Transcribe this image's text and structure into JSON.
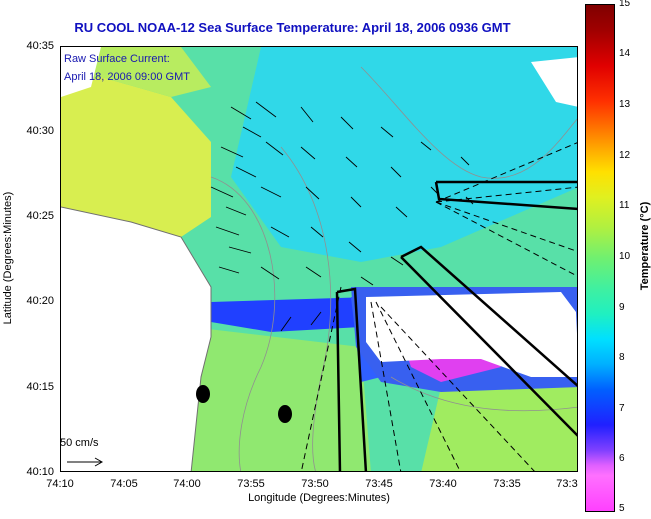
{
  "title": "RU COOL  NOAA-12  Sea Surface Temperature:  April 18, 2006 0936 GMT",
  "legend": {
    "line1": "Raw Surface Current:",
    "line2": "April 18, 2006 09:00 GMT"
  },
  "scale": {
    "label": "50 cm/s"
  },
  "axes": {
    "xlabel": "Longitude (Degrees:Minutes)",
    "ylabel": "Latitude (Degrees:Minutes)",
    "xticks": [
      "74:10",
      "74:05",
      "74:00",
      "73:55",
      "73:50",
      "73:45",
      "73:40",
      "73:35",
      "73:3"
    ],
    "yticks": [
      "40:35",
      "40:30",
      "40:25",
      "40:20",
      "40:15",
      "40:10"
    ]
  },
  "colorbar": {
    "label": "Temperature (°C)",
    "ticks": [
      "15",
      "14",
      "13",
      "12",
      "11",
      "10",
      "9",
      "8",
      "7",
      "6",
      "5"
    ],
    "min": 5,
    "max": 15
  },
  "colors": {
    "title": "#1010c0",
    "land": "#ffffff",
    "warm_sst": "#e8f050",
    "cold_sst": "#2040ff"
  }
}
